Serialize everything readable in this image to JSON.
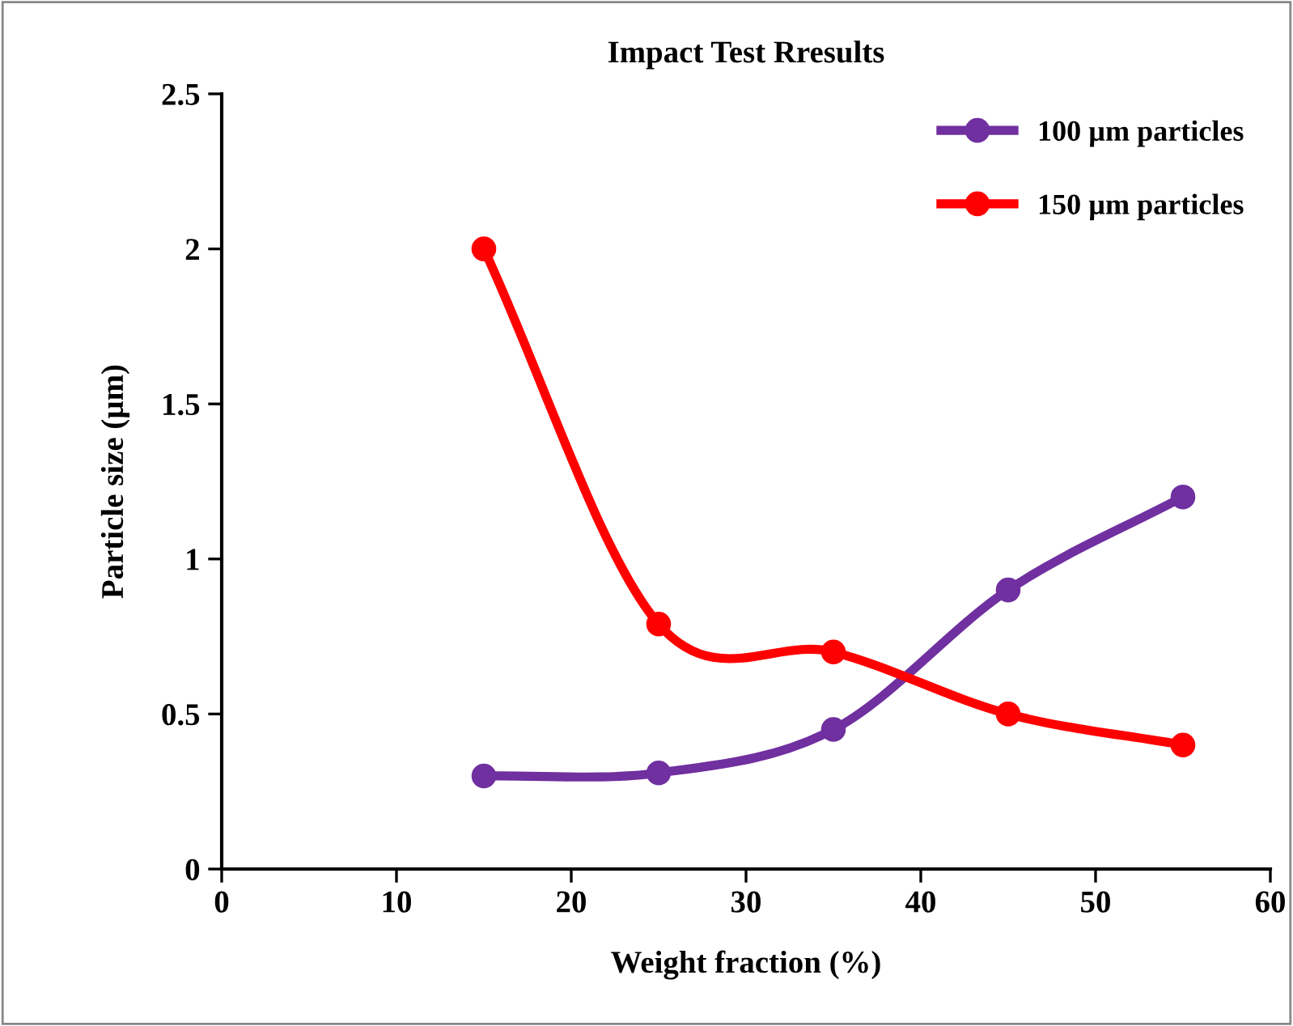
{
  "chart_data": {
    "type": "line",
    "title": "Impact Test Rresults",
    "xlabel": "Weight fraction (%)",
    "ylabel": "Particle size (µm)",
    "x": [
      15,
      25,
      35,
      45,
      55
    ],
    "series": [
      {
        "name": "100 µm particles",
        "color": "#7030a0",
        "values": [
          0.3,
          0.31,
          0.45,
          0.9,
          1.2
        ]
      },
      {
        "name": "150 µm particles",
        "color": "#ff0000",
        "values": [
          2.0,
          0.79,
          0.7,
          0.5,
          0.4
        ]
      }
    ],
    "xlim": [
      0,
      60
    ],
    "xticks": [
      0,
      10,
      20,
      30,
      40,
      50,
      60
    ],
    "ylim": [
      0,
      2.5
    ],
    "yticks": [
      0,
      0.5,
      1,
      1.5,
      2,
      2.5
    ],
    "grid": false,
    "legend": "top right",
    "marker": "circle",
    "line_style": "solid"
  }
}
